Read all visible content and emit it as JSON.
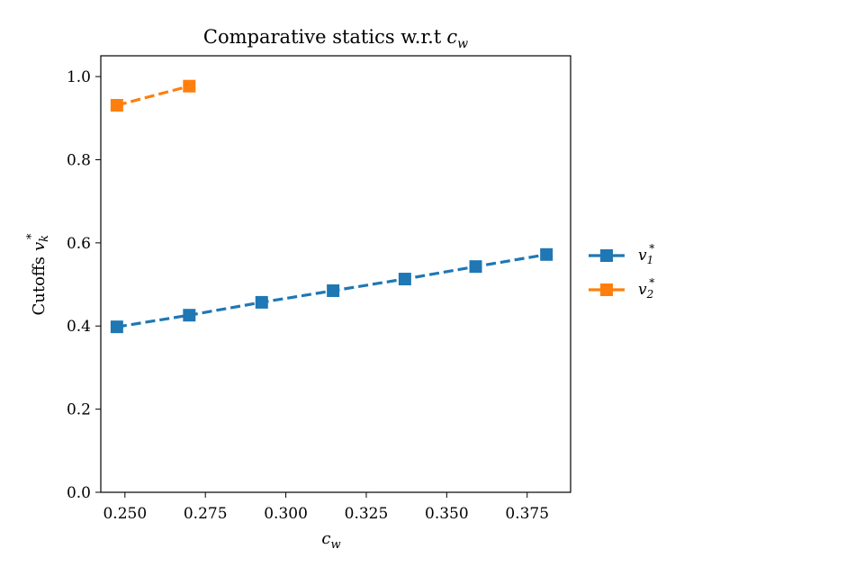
{
  "chart_data": {
    "type": "line",
    "title": "Comparative statics w.r.t",
    "title_math": "c",
    "title_math_sub": "w",
    "xlabel": "c",
    "xlabel_sub": "w",
    "ylabel": "Cutoffs",
    "ylabel_math": "v",
    "ylabel_math_sub": "k",
    "ylabel_math_sup": "*",
    "xlim": [
      0.2425,
      0.3885
    ],
    "ylim": [
      0.0,
      1.05
    ],
    "xticks": [
      0.25,
      0.275,
      0.3,
      0.325,
      0.35,
      0.375
    ],
    "xtick_labels": [
      "0.250",
      "0.275",
      "0.300",
      "0.325",
      "0.350",
      "0.375"
    ],
    "yticks": [
      0.0,
      0.2,
      0.4,
      0.6,
      0.8,
      1.0
    ],
    "ytick_labels": [
      "0.0",
      "0.2",
      "0.4",
      "0.6",
      "0.8",
      "1.0"
    ],
    "grid": false,
    "legend_position": "outside-right",
    "series": [
      {
        "name": "v",
        "name_sub": "1",
        "name_sup": "*",
        "color": "#1f77b4",
        "linestyle": "dashed",
        "marker": "square",
        "x": [
          0.2475,
          0.27,
          0.2925,
          0.3147,
          0.337,
          0.359,
          0.381
        ],
        "y": [
          0.398,
          0.426,
          0.457,
          0.485,
          0.513,
          0.543,
          0.572
        ]
      },
      {
        "name": "v",
        "name_sub": "2",
        "name_sup": "*",
        "color": "#ff7f0e",
        "linestyle": "dashed",
        "marker": "square",
        "x": [
          0.2475,
          0.27
        ],
        "y": [
          0.931,
          0.977
        ]
      }
    ]
  }
}
